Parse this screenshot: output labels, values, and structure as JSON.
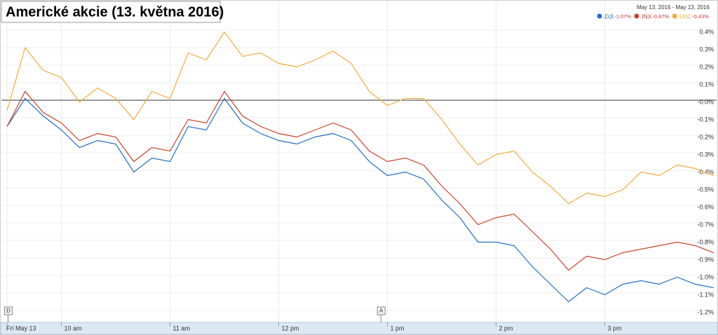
{
  "chart_data": {
    "type": "line",
    "title": "Americké akcie (13. května 2016)",
    "date_range": "May 13, 2016  -  May 13, 2016",
    "x": [
      9.5,
      9.6667,
      9.8333,
      10,
      10.1667,
      10.3333,
      10.5,
      10.6667,
      10.8333,
      11,
      11.1667,
      11.3333,
      11.5,
      11.6667,
      11.8333,
      12,
      12.1667,
      12.3333,
      12.5,
      12.6667,
      12.8333,
      13,
      13.1667,
      13.3333,
      13.5,
      13.6667,
      13.8333,
      14,
      14.1667,
      14.3333,
      14.5,
      14.6667,
      14.8333,
      15,
      15.1667,
      15.3333,
      15.5,
      15.6667,
      15.8333,
      16
    ],
    "series": [
      {
        "name": ".DJI",
        "change": "-1.07%",
        "color": "#1f6fc4",
        "values": [
          -0.15,
          0.01,
          -0.09,
          -0.17,
          -0.27,
          -0.23,
          -0.25,
          -0.41,
          -0.33,
          -0.35,
          -0.15,
          -0.17,
          0.01,
          -0.13,
          -0.19,
          -0.23,
          -0.25,
          -0.21,
          -0.19,
          -0.23,
          -0.35,
          -0.43,
          -0.41,
          -0.45,
          -0.57,
          -0.67,
          -0.81,
          -0.81,
          -0.83,
          -0.95,
          -1.05,
          -1.15,
          -1.07,
          -1.11,
          -1.05,
          -1.03,
          -1.05,
          -1.01,
          -1.05,
          -1.07
        ]
      },
      {
        "name": ".INX",
        "change": "-0.87%",
        "color": "#c9432c",
        "values": [
          -0.15,
          0.05,
          -0.07,
          -0.13,
          -0.23,
          -0.19,
          -0.21,
          -0.35,
          -0.27,
          -0.29,
          -0.11,
          -0.13,
          0.05,
          -0.09,
          -0.15,
          -0.19,
          -0.21,
          -0.17,
          -0.13,
          -0.17,
          -0.29,
          -0.35,
          -0.33,
          -0.37,
          -0.49,
          -0.59,
          -0.71,
          -0.67,
          -0.65,
          -0.75,
          -0.85,
          -0.97,
          -0.89,
          -0.91,
          -0.87,
          -0.85,
          -0.83,
          -0.81,
          -0.83,
          -0.87
        ]
      },
      {
        "name": ".IXIC",
        "change": "-0.43%",
        "color": "#f0ad3c",
        "values": [
          -0.06,
          0.3,
          0.17,
          0.13,
          -0.01,
          0.07,
          0.01,
          -0.11,
          0.05,
          0.01,
          0.27,
          0.23,
          0.39,
          0.25,
          0.27,
          0.21,
          0.19,
          0.23,
          0.28,
          0.21,
          0.05,
          -0.03,
          0.01,
          0.01,
          -0.11,
          -0.25,
          -0.37,
          -0.31,
          -0.29,
          -0.41,
          -0.49,
          -0.59,
          -0.53,
          -0.55,
          -0.51,
          -0.41,
          -0.43,
          -0.37,
          -0.39,
          -0.43
        ]
      }
    ],
    "reference_line": 0,
    "xlim": [
      9.5,
      16
    ],
    "xticks": [
      {
        "value": 9.5,
        "label": "Fri May 13"
      },
      {
        "value": 10,
        "label": "10 am"
      },
      {
        "value": 11,
        "label": "11 am"
      },
      {
        "value": 12,
        "label": "12 pm"
      },
      {
        "value": 13,
        "label": "1 pm"
      },
      {
        "value": 14,
        "label": "2 pm"
      },
      {
        "value": 15,
        "label": "3 pm"
      }
    ],
    "ylim": [
      -1.25,
      0.45
    ],
    "yticks": [
      {
        "value": 0.4,
        "label": "0.4%"
      },
      {
        "value": 0.3,
        "label": "0.3%"
      },
      {
        "value": 0.2,
        "label": "0.2%"
      },
      {
        "value": 0.1,
        "label": "0.1%"
      },
      {
        "value": 0,
        "label": "-0.0%"
      },
      {
        "value": -0.1,
        "label": "-0.1%"
      },
      {
        "value": -0.2,
        "label": "-0.2%"
      },
      {
        "value": -0.3,
        "label": "-0.3%"
      },
      {
        "value": -0.4,
        "label": "-0.4%"
      },
      {
        "value": -0.5,
        "label": "-0.5%"
      },
      {
        "value": -0.6,
        "label": "-0.6%"
      },
      {
        "value": -0.7,
        "label": "-0.7%"
      },
      {
        "value": -0.8,
        "label": "-0.8%"
      },
      {
        "value": -0.9,
        "label": "-0.9%"
      },
      {
        "value": -1.0,
        "label": "-1.0%"
      },
      {
        "value": -1.1,
        "label": "-1.1%"
      },
      {
        "value": -1.2,
        "label": "-1.2%"
      }
    ],
    "news_flags": [
      {
        "label": "D",
        "x": 9.51
      },
      {
        "label": "A",
        "x": 12.94
      }
    ],
    "grid": true
  }
}
